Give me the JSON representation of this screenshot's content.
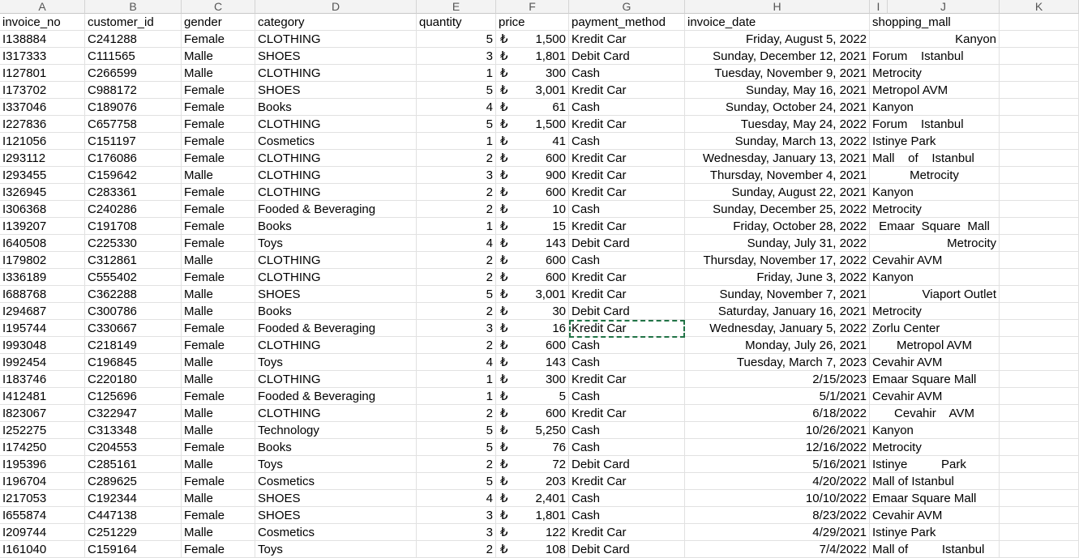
{
  "columns": [
    "A",
    "B",
    "C",
    "D",
    "E",
    "F",
    "G",
    "H",
    "I",
    "J",
    "K"
  ],
  "currency_symbol": "₺",
  "headers": [
    "invoice_no",
    "customer_id",
    "gender",
    "category",
    "quantity",
    "price",
    "payment_method",
    "invoice_date",
    "shopping_mall"
  ],
  "rows": [
    [
      "I138884",
      "C241288",
      "Female",
      "CLOTHING",
      "5",
      "1,500",
      "Kredit Car",
      "Friday, August 5, 2022",
      "Kanyon"
    ],
    [
      "I317333",
      "C111565",
      "Malle",
      "SHOES",
      "3",
      "1,801",
      "Debit Card",
      "Sunday, December 12, 2021",
      "Forum    Istanbul"
    ],
    [
      "I127801",
      "C266599",
      "Malle",
      "CLOTHING",
      "1",
      "300",
      "Cash",
      "Tuesday, November 9, 2021",
      "Metrocity"
    ],
    [
      "I173702",
      "C988172",
      "Female",
      "SHOES",
      "5",
      "3,001",
      "Kredit Car",
      "Sunday, May 16, 2021",
      "Metropol AVM"
    ],
    [
      "I337046",
      "C189076",
      "Female",
      "Books",
      "4",
      "61",
      "Cash",
      "Sunday, October 24, 2021",
      "Kanyon"
    ],
    [
      "I227836",
      "C657758",
      "Female",
      "CLOTHING",
      "5",
      "1,500",
      "Kredit Car",
      "Tuesday, May 24, 2022",
      "Forum    Istanbul"
    ],
    [
      "I121056",
      "C151197",
      "Female",
      "Cosmetics",
      "1",
      "41",
      "Cash",
      "Sunday, March 13, 2022",
      "Istinye Park"
    ],
    [
      "I293112",
      "C176086",
      "Female",
      "CLOTHING",
      "2",
      "600",
      "Kredit Car",
      "Wednesday, January 13, 2021",
      "Mall    of    Istanbul"
    ],
    [
      "I293455",
      "C159642",
      "Malle",
      "CLOTHING",
      "3",
      "900",
      "Kredit Car",
      "Thursday, November 4, 2021",
      "Metrocity"
    ],
    [
      "I326945",
      "C283361",
      "Female",
      "CLOTHING",
      "2",
      "600",
      "Kredit Car",
      "Sunday, August 22, 2021",
      "Kanyon"
    ],
    [
      "I306368",
      "C240286",
      "Female",
      "Fooded & Beveraging",
      "2",
      "10",
      "Cash",
      "Sunday, December 25, 2022",
      "Metrocity"
    ],
    [
      "I139207",
      "C191708",
      "Female",
      "Books",
      "1",
      "15",
      "Kredit Car",
      "Friday, October 28, 2022",
      "Emaar  Square  Mall"
    ],
    [
      "I640508",
      "C225330",
      "Female",
      "Toys",
      "4",
      "143",
      "Debit Card",
      "Sunday, July 31, 2022",
      "Metrocity"
    ],
    [
      "I179802",
      "C312861",
      "Malle",
      "CLOTHING",
      "2",
      "600",
      "Cash",
      "Thursday, November 17, 2022",
      "Cevahir AVM"
    ],
    [
      "I336189",
      "C555402",
      "Female",
      "CLOTHING",
      "2",
      "600",
      "Kredit Car",
      "Friday, June 3, 2022",
      "Kanyon"
    ],
    [
      "I688768",
      "C362288",
      "Malle",
      "SHOES",
      "5",
      "3,001",
      "Kredit Car",
      "Sunday, November 7, 2021",
      "Viaport Outlet"
    ],
    [
      "I294687",
      "C300786",
      "Malle",
      "Books",
      "2",
      "30",
      "Debit Card",
      "Saturday, January 16, 2021",
      "Metrocity"
    ],
    [
      "I195744",
      "C330667",
      "Female",
      "Fooded & Beveraging",
      "3",
      "16",
      "Kredit Car",
      "Wednesday, January 5, 2022",
      "Zorlu Center"
    ],
    [
      "I993048",
      "C218149",
      "Female",
      "CLOTHING",
      "2",
      "600",
      "Cash",
      "Monday, July 26, 2021",
      "Metropol AVM"
    ],
    [
      "I992454",
      "C196845",
      "Malle",
      "Toys",
      "4",
      "143",
      "Cash",
      "Tuesday, March 7, 2023",
      "Cevahir AVM"
    ],
    [
      "I183746",
      "C220180",
      "Malle",
      "CLOTHING",
      "1",
      "300",
      "Kredit Car",
      "2/15/2023",
      "Emaar Square Mall"
    ],
    [
      "I412481",
      "C125696",
      "Female",
      "Fooded & Beveraging",
      "1",
      "5",
      "Cash",
      "5/1/2021",
      "Cevahir AVM"
    ],
    [
      "I823067",
      "C322947",
      "Malle",
      "CLOTHING",
      "2",
      "600",
      "Kredit Car",
      "6/18/2022",
      "Cevahir    AVM"
    ],
    [
      "I252275",
      "C313348",
      "Malle",
      "Technology",
      "5",
      "5,250",
      "Cash",
      "10/26/2021",
      "Kanyon"
    ],
    [
      "I174250",
      "C204553",
      "Female",
      "Books",
      "5",
      "76",
      "Cash",
      "12/16/2022",
      "Metrocity"
    ],
    [
      "I195396",
      "C285161",
      "Malle",
      "Toys",
      "2",
      "72",
      "Debit Card",
      "5/16/2021",
      "Istinye          Park"
    ],
    [
      "I196704",
      "C289625",
      "Female",
      "Cosmetics",
      "5",
      "203",
      "Kredit Car",
      "4/20/2022",
      "Mall of Istanbul"
    ],
    [
      "I217053",
      "C192344",
      "Malle",
      "SHOES",
      "4",
      "2,401",
      "Cash",
      "10/10/2022",
      "Emaar Square Mall"
    ],
    [
      "I655874",
      "C447138",
      "Female",
      "SHOES",
      "3",
      "1,801",
      "Cash",
      "8/23/2022",
      "Cevahir AVM"
    ],
    [
      "I209744",
      "C251229",
      "Malle",
      "Cosmetics",
      "3",
      "122",
      "Kredit Car",
      "4/29/2021",
      "Istinye Park"
    ],
    [
      "I161040",
      "C159164",
      "Female",
      "Toys",
      "2",
      "108",
      "Debit Card",
      "7/4/2022",
      "Mall of          Istanbul"
    ]
  ],
  "mall_align": [
    "right",
    "left",
    "left",
    "left",
    "left",
    "left",
    "left",
    "left",
    "center",
    "left",
    "left",
    "center",
    "right",
    "left",
    "left",
    "right",
    "left",
    "left",
    "center",
    "left",
    "left",
    "left",
    "center",
    "left",
    "left",
    "left",
    "left",
    "left",
    "left",
    "left",
    "left"
  ]
}
